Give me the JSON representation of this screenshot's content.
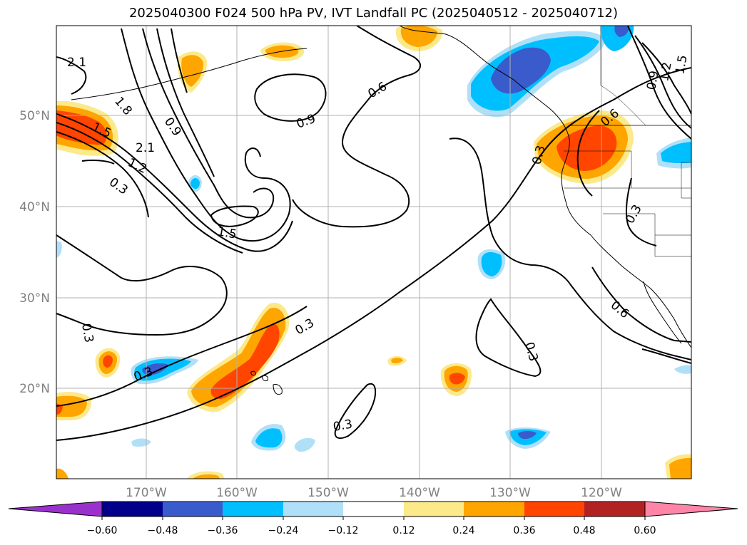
{
  "title": "2025040300 F024 500 hPa PV, IVT Landfall PC (2025040512 - 2025040712)",
  "latitude_labels": [
    "50°N",
    "40°N",
    "30°N",
    "20°N"
  ],
  "longitude_labels": [
    "170°W",
    "160°W",
    "150°W",
    "140°W",
    "130°W",
    "120°W"
  ],
  "contour_labels": [
    "2.1",
    "1.8",
    "1.5",
    "2.1",
    "1.2",
    "0.9",
    "0.3",
    "0.9",
    "0.6",
    "1.5",
    "0.3",
    "0.3",
    "0.3",
    "0.3",
    "0.3",
    "0.3",
    "0.6",
    "0.6",
    "0.3",
    "0.9",
    "1.2",
    "1.5"
  ],
  "colorbar": {
    "ticks": [
      "−0.60",
      "−0.48",
      "−0.36",
      "−0.24",
      "−0.12",
      "0.12",
      "0.24",
      "0.36",
      "0.48",
      "0.60"
    ],
    "colors": [
      "#9932cc",
      "#00008b",
      "#3a5bcc",
      "#00bfff",
      "#b0e0f8",
      "#ffffff",
      "#fce98a",
      "#ffa500",
      "#ff4500",
      "#b22222",
      "#ff85a8"
    ]
  },
  "colors": {
    "positive_low": "#fce98a",
    "positive_mid": "#ffa500",
    "positive_high": "#ff4500",
    "negative_low": "#b0e0f8",
    "negative_mid": "#00bfff",
    "negative_high": "#3a5bcc",
    "gridline": "#b0b0b0",
    "contour": "#000000"
  }
}
